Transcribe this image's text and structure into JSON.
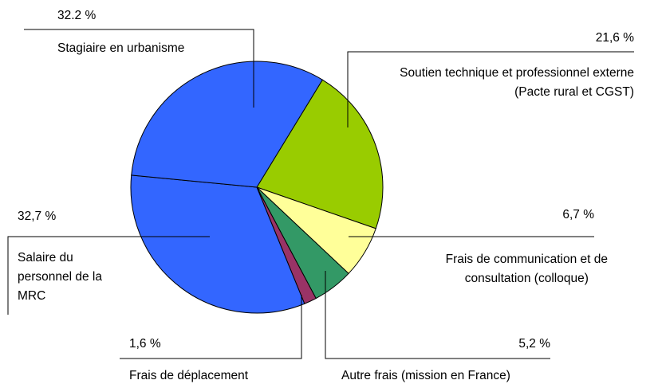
{
  "chart_data": {
    "type": "pie",
    "categories": [
      "Soutien technique et professionnel externe\n(Pacte rural et CGST)",
      "Frais de communication et de\nconsultation (colloque)",
      "Autre frais (mission en France)",
      "Frais de déplacement",
      "Salaire du\npersonnel de la\nMRC",
      "Stagiaire en urbanisme"
    ],
    "values": [
      21.6,
      6.7,
      5.2,
      1.6,
      32.7,
      32.2
    ],
    "value_labels": [
      "21,6 %",
      "6,7 %",
      "5,2 %",
      "1,6 %",
      "32,7 %",
      "32.2 %"
    ],
    "colors": [
      "#99cc00",
      "#ffff99",
      "#339966",
      "#993366",
      "#3366ff",
      "#3366ff"
    ]
  }
}
